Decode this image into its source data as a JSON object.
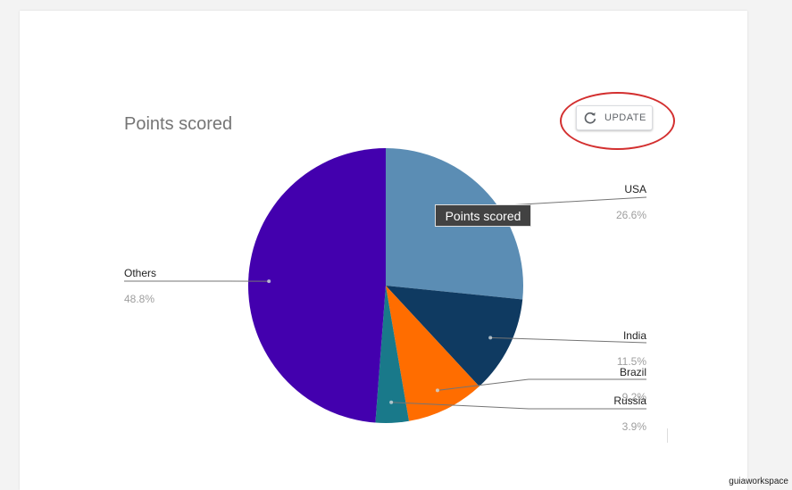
{
  "chart_data": {
    "type": "pie",
    "title": "Points scored",
    "slices": [
      {
        "label": "USA",
        "percent_label": "26.6%",
        "value": 26.6,
        "color": "#5b8db4"
      },
      {
        "label": "India",
        "percent_label": "11.5%",
        "value": 11.5,
        "color": "#0f3a61"
      },
      {
        "label": "Brazil",
        "percent_label": "9.2%",
        "value": 9.2,
        "color": "#ff6d00"
      },
      {
        "label": "Russia",
        "percent_label": "3.9%",
        "value": 3.9,
        "color": "#19798a"
      },
      {
        "label": "Others",
        "percent_label": "48.8%",
        "value": 48.8,
        "color": "#4300ae"
      }
    ],
    "tooltip": "Points scored",
    "legend": "labeled"
  },
  "toolbar": {
    "update_label": "UPDATE",
    "update_icon": "refresh-icon"
  },
  "watermark": "guiaworkspace",
  "colors": {
    "highlight": "#d32f2f",
    "tooltip_bg": "#424242"
  }
}
